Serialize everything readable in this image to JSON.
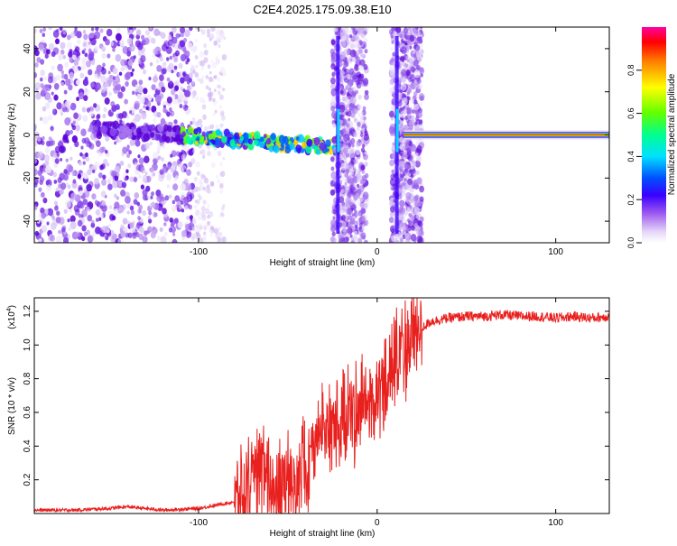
{
  "title": "C2E4.2025.175.09.38.E10",
  "colors": {
    "line": "#e8201e",
    "spectrum_low": "#5a00d8",
    "spectrum_high": "#ff0000"
  },
  "chart_data": [
    {
      "type": "heatmap",
      "title": "C2E4.2025.175.09.38.E10",
      "xlabel": "Height of straight line (km)",
      "ylabel": "Frequency (Hz)",
      "xlim": [
        -192,
        130
      ],
      "ylim": [
        -50,
        50
      ],
      "xticks": [
        -100,
        0,
        100
      ],
      "yticks": [
        -40,
        -20,
        0,
        20,
        40
      ],
      "colorbar": {
        "label": "Normalized spectral amplitude",
        "range": [
          0,
          1
        ],
        "ticks": [
          "0.0",
          "0.2",
          "0.4",
          "0.6",
          "0.8"
        ]
      },
      "features": [
        {
          "name": "noise",
          "x": [
            -192,
            -103
          ],
          "note": "scattered purple speckle"
        },
        {
          "name": "wandering-line",
          "x": [
            -160,
            -20
          ],
          "y_start": 3,
          "y_end": -6
        },
        {
          "name": "broadband-burst",
          "x": [
            -23,
            -19
          ]
        },
        {
          "name": "broadband-burst",
          "x": [
            10,
            12
          ]
        },
        {
          "name": "steady-line",
          "x": [
            15,
            130
          ],
          "y": 0
        }
      ]
    },
    {
      "type": "line",
      "xlabel": "Height of straight line (km)",
      "ylabel": "SNR (10 * v/v)",
      "yscale_label": "(x10",
      "yscale_exp": "4",
      "yscale_suffix": ")",
      "xlim": [
        -192,
        130
      ],
      "ylim": [
        0,
        1.28
      ],
      "xticks": [
        -100,
        0,
        100
      ],
      "yticks": [
        "0.2",
        "0.4",
        "0.6",
        "0.8",
        "1.0",
        "1.2"
      ],
      "series": [
        {
          "x": [
            -192,
            -170,
            -150,
            -140,
            -120,
            -100,
            -90,
            -80,
            -70,
            -65,
            -60,
            -55,
            -50,
            -45,
            -40,
            -35,
            -30,
            -25,
            -20,
            -15,
            -10,
            -5,
            0,
            5,
            10,
            15,
            20,
            25,
            30,
            40,
            50,
            60,
            70,
            80,
            90,
            100,
            110,
            120,
            130
          ],
          "y": [
            0.02,
            0.02,
            0.03,
            0.04,
            0.02,
            0.03,
            0.05,
            0.07,
            0.12,
            0.25,
            0.2,
            0.1,
            0.15,
            0.22,
            0.3,
            0.4,
            0.55,
            0.5,
            0.52,
            0.6,
            0.65,
            0.62,
            0.7,
            0.8,
            0.85,
            0.95,
            1.05,
            1.1,
            1.14,
            1.16,
            1.17,
            1.17,
            1.18,
            1.17,
            1.17,
            1.16,
            1.17,
            1.16,
            1.17
          ]
        }
      ]
    }
  ]
}
